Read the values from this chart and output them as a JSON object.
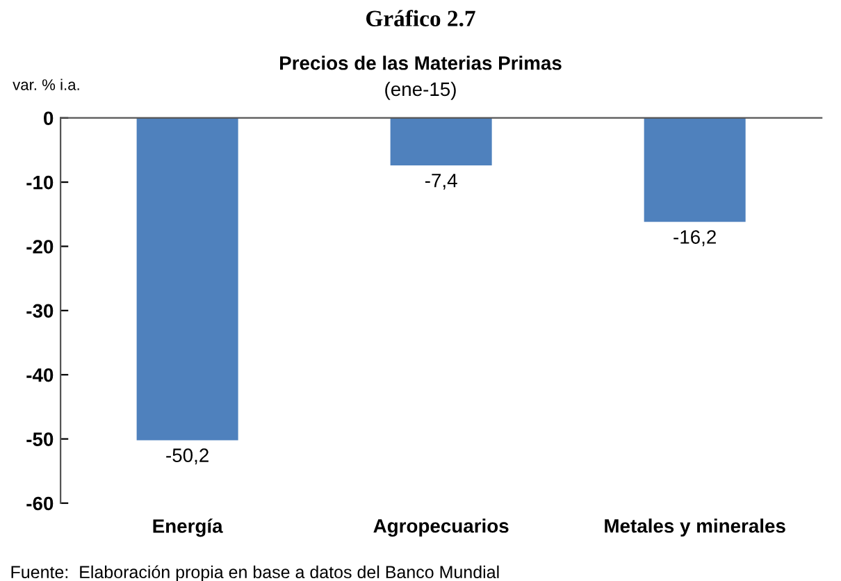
{
  "chart_data": {
    "type": "bar",
    "title": "Gráfico 2.7",
    "subtitle": "Precios de las Materias Primas",
    "ylabel": "var. % i.a.",
    "annotations": [
      "(ene-15)",
      "Fuente:  Elaboración propia en base a datos del Banco Mundial"
    ],
    "categories": [
      "Energía",
      "Agropecuarios",
      "Metales y minerales"
    ],
    "values": [
      -50.2,
      -7.4,
      -16.2
    ],
    "color": "#4f81bd",
    "value_labels": [
      "-50,2",
      "-7,4",
      "-16,2"
    ],
    "ylim": [
      -60,
      0
    ],
    "yticks": [
      0,
      -10,
      -20,
      -30,
      -40,
      -50,
      -60
    ],
    "grid": false,
    "legend": false
  }
}
